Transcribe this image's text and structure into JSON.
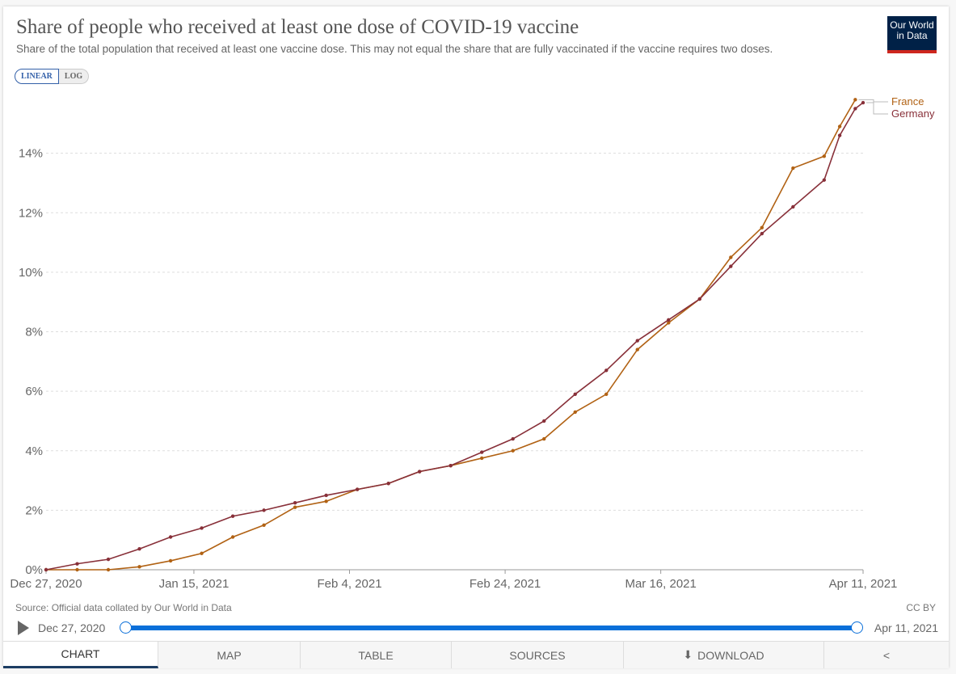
{
  "header": {
    "title": "Share of people who received at least one dose of COVID-19 vaccine",
    "subtitle": "Share of the total population that received at least one vaccine dose. This may not equal the share that are fully vaccinated if the vaccine requires two doses.",
    "logo": "Our World in Data"
  },
  "scale_toggle": {
    "linear": "LINEAR",
    "log": "LOG"
  },
  "chart_data": {
    "type": "line",
    "title": "Share of people who received at least one dose of COVID-19 vaccine",
    "ylabel": "",
    "xlabel": "",
    "ylim": [
      0,
      16
    ],
    "yticks": [
      0,
      2,
      4,
      6,
      8,
      10,
      12,
      14
    ],
    "ytick_labels": [
      "0%",
      "2%",
      "4%",
      "6%",
      "8%",
      "10%",
      "12%",
      "14%"
    ],
    "xlim": [
      0,
      105
    ],
    "xticks": [
      0,
      19,
      39,
      59,
      79,
      105
    ],
    "xtick_labels": [
      "Dec 27, 2020",
      "Jan 15, 2021",
      "Feb 4, 2021",
      "Feb 24, 2021",
      "Mar 16, 2021",
      "Apr 11, 2021"
    ],
    "x_unit": "days since Dec 27, 2020",
    "grid": "horizontal dashed",
    "legend": "right (line labels)",
    "series": [
      {
        "name": "France",
        "color": "#b16214",
        "x": [
          0,
          4,
          8,
          12,
          16,
          20,
          24,
          28,
          32,
          36,
          40,
          44,
          48,
          52,
          56,
          60,
          64,
          68,
          72,
          76,
          80,
          84,
          88,
          92,
          96,
          100,
          102,
          104
        ],
        "values": [
          0,
          0,
          0,
          0.1,
          0.3,
          0.55,
          1.1,
          1.5,
          2.1,
          2.3,
          2.7,
          2.9,
          3.3,
          3.5,
          3.75,
          4.0,
          4.4,
          5.3,
          5.9,
          7.4,
          8.3,
          9.1,
          10.5,
          11.5,
          13.5,
          13.9,
          14.9,
          15.8
        ]
      },
      {
        "name": "Germany",
        "color": "#883039",
        "x": [
          0,
          4,
          8,
          12,
          16,
          20,
          24,
          28,
          32,
          36,
          40,
          44,
          48,
          52,
          56,
          60,
          64,
          68,
          72,
          76,
          80,
          84,
          88,
          92,
          96,
          100,
          102,
          104,
          105
        ],
        "values": [
          0,
          0.2,
          0.35,
          0.7,
          1.1,
          1.4,
          1.8,
          2.0,
          2.25,
          2.5,
          2.7,
          2.9,
          3.3,
          3.5,
          3.95,
          4.4,
          5.0,
          5.9,
          6.7,
          7.7,
          8.4,
          9.1,
          10.2,
          11.3,
          12.2,
          13.1,
          14.6,
          15.5,
          15.7
        ]
      }
    ]
  },
  "footer": {
    "source": "Source: Official data collated by Our World in Data",
    "license": "CC BY"
  },
  "timeline": {
    "start": "Dec 27, 2020",
    "end": "Apr 11, 2021"
  },
  "tabs": {
    "chart": "CHART",
    "map": "MAP",
    "table": "TABLE",
    "sources": "SOURCES",
    "download": "DOWNLOAD"
  }
}
